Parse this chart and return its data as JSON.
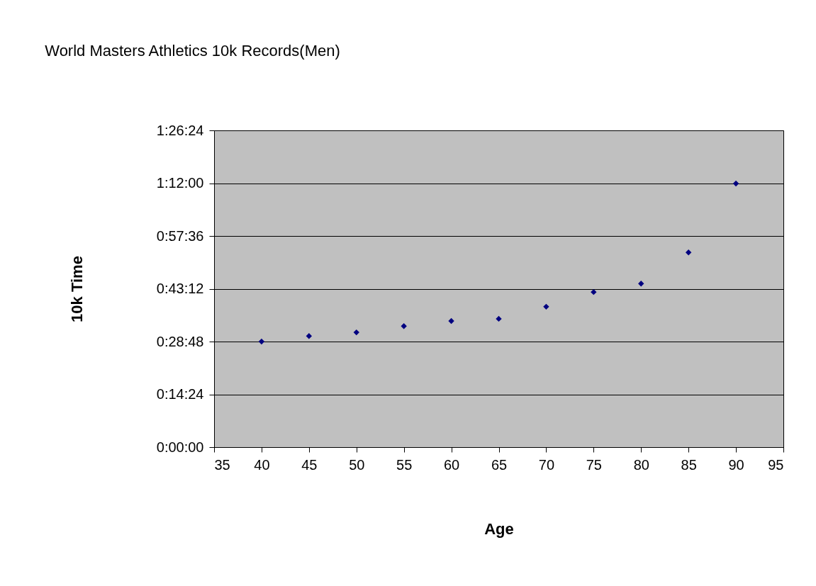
{
  "chart_data": {
    "type": "scatter",
    "title": "World Masters Athletics 10k Records(Men)",
    "xlabel": "Age",
    "ylabel": "10k Time",
    "x": [
      40,
      45,
      50,
      55,
      60,
      65,
      70,
      75,
      80,
      85,
      90
    ],
    "series": [
      {
        "color": "#000080",
        "values": [
          28.8,
          30.3,
          31.3,
          33.0,
          34.4,
          35.0,
          38.3,
          42.3,
          44.6,
          53.1,
          71.9
        ]
      }
    ],
    "xlim": [
      35,
      95
    ],
    "xticks": [
      35,
      40,
      45,
      50,
      55,
      60,
      65,
      70,
      75,
      80,
      85,
      90,
      95
    ],
    "ylim": [
      0,
      86.4
    ],
    "yticks": [
      {
        "value": 0,
        "label": "0:00:00"
      },
      {
        "value": 14.4,
        "label": "0:14:24"
      },
      {
        "value": 28.8,
        "label": "0:28:48"
      },
      {
        "value": 43.2,
        "label": "0:43:12"
      },
      {
        "value": 57.6,
        "label": "0:57:36"
      },
      {
        "value": 72,
        "label": "1:12:00"
      },
      {
        "value": 86.4,
        "label": "1:26:24"
      }
    ],
    "grid": "y",
    "marker": "diamond"
  }
}
